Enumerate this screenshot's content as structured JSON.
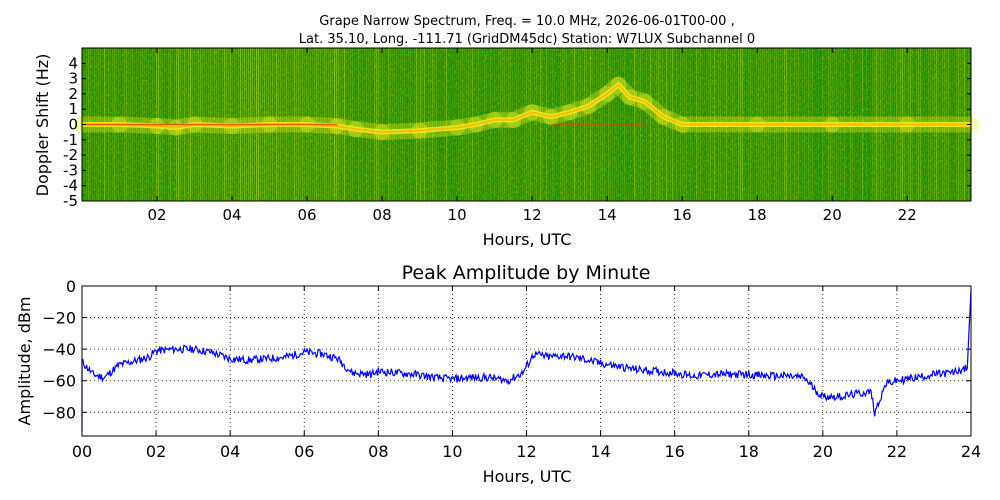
{
  "title_line1": "Grape Narrow Spectrum, Freq. = 10.0 MHz, 2026-06-01T00-00 ,",
  "title_line2": "Lat.  35.10, Long. -111.71 (GridDM45dc) Station: W7LUX Subchannel 0",
  "chart_data": [
    {
      "type": "heatmap",
      "title": "",
      "xlabel": "Hours, UTC",
      "ylabel": "Doppler Shift (Hz)",
      "xlim": [
        0,
        23.7
      ],
      "ylim": [
        -5,
        5
      ],
      "x_ticks": [
        2,
        4,
        6,
        8,
        10,
        12,
        14,
        16,
        18,
        20,
        22
      ],
      "x_tick_labels": [
        "02",
        "04",
        "06",
        "08",
        "10",
        "12",
        "14",
        "16",
        "18",
        "20",
        "22"
      ],
      "y_ticks": [
        4,
        3,
        2,
        1,
        0,
        -1,
        -2,
        -3,
        -4,
        -5
      ],
      "y_tick_labels": [
        "4",
        "3",
        "2",
        "1",
        "0",
        "-1",
        "-2",
        "-3",
        "-4",
        "-5"
      ],
      "colors": {
        "background": "#1e8a00",
        "mid": "#9ccc14",
        "high": "#f0f020",
        "peak": "#ff3000"
      },
      "carrier_trace": {
        "hours": [
          0,
          1,
          2,
          2.5,
          3,
          4,
          5,
          6,
          6.8,
          7.3,
          8,
          9,
          10,
          10.5,
          11,
          11.5,
          12,
          12.5,
          13,
          13.5,
          14,
          14.3,
          14.6,
          15,
          15.5,
          16,
          18,
          20,
          22,
          23.7
        ],
        "doppler_hz": [
          0,
          0,
          -0.1,
          -0.2,
          0,
          -0.1,
          0,
          0,
          -0.1,
          -0.3,
          -0.5,
          -0.4,
          -0.2,
          0,
          0.3,
          0.3,
          0.8,
          0.5,
          0.8,
          1.2,
          2.0,
          2.6,
          1.8,
          1.5,
          0.5,
          0,
          0,
          0,
          0,
          0
        ]
      }
    },
    {
      "type": "line",
      "title": "Peak Amplitude by Minute",
      "xlabel": "Hours, UTC",
      "ylabel": "Amplitude, dBm",
      "xlim": [
        0,
        24
      ],
      "ylim": [
        -95,
        0
      ],
      "grid": true,
      "x_ticks": [
        0,
        2,
        4,
        6,
        8,
        10,
        12,
        14,
        16,
        18,
        20,
        22,
        24
      ],
      "x_tick_labels": [
        "00",
        "02",
        "04",
        "06",
        "08",
        "10",
        "12",
        "14",
        "16",
        "18",
        "20",
        "22",
        "24"
      ],
      "y_ticks": [
        0,
        -20,
        -40,
        -60,
        -80
      ],
      "y_tick_labels": [
        "0",
        "−20",
        "−40",
        "−60",
        "−80"
      ],
      "series": [
        {
          "color": "#0000ff",
          "x": [
            0,
            0.3,
            0.6,
            1.0,
            1.5,
            1.8,
            2.0,
            2.5,
            3.0,
            3.5,
            4.0,
            4.5,
            5.0,
            5.5,
            6.0,
            6.5,
            6.9,
            7.3,
            7.8,
            8.0,
            8.5,
            9.0,
            9.5,
            10.0,
            10.5,
            11.0,
            11.5,
            11.9,
            12.2,
            12.6,
            13.0,
            13.5,
            14.0,
            14.5,
            15.0,
            15.5,
            16.0,
            16.5,
            17.0,
            17.5,
            18.0,
            18.5,
            19.0,
            19.5,
            19.8,
            20.0,
            20.5,
            21.0,
            21.3,
            21.4,
            21.7,
            22.0,
            22.5,
            23.0,
            23.5,
            23.9,
            24.0
          ],
          "y": [
            -48,
            -56,
            -58,
            -50,
            -47,
            -45,
            -41,
            -40,
            -40,
            -42,
            -46,
            -47,
            -46,
            -45,
            -42,
            -43,
            -46,
            -55,
            -56,
            -54,
            -55,
            -56,
            -58,
            -59,
            -58,
            -58,
            -60,
            -55,
            -43,
            -45,
            -44,
            -46,
            -49,
            -51,
            -53,
            -54,
            -55,
            -57,
            -56,
            -56,
            -56,
            -57,
            -57,
            -58,
            -66,
            -70,
            -70,
            -68,
            -67,
            -80,
            -62,
            -60,
            -58,
            -56,
            -55,
            -52,
            -2
          ]
        }
      ]
    }
  ]
}
